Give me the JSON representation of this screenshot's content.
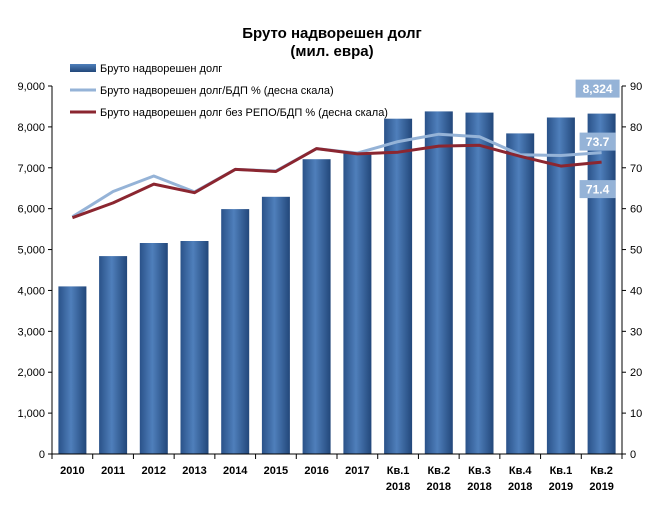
{
  "chart_data": {
    "type": "bar",
    "title": "Бруто надворешен долг",
    "subtitle": "(мил. евра)",
    "categories": [
      [
        "2010"
      ],
      [
        "2011"
      ],
      [
        "2012"
      ],
      [
        "2013"
      ],
      [
        "2014"
      ],
      [
        "2015"
      ],
      [
        "2016"
      ],
      [
        "2017"
      ],
      [
        "Кв.1",
        "2018"
      ],
      [
        "Кв.2",
        "2018"
      ],
      [
        "Кв.3",
        "2018"
      ],
      [
        "Кв.4",
        "2018"
      ],
      [
        "Кв.1",
        "2019"
      ],
      [
        "Кв.2",
        "2019"
      ]
    ],
    "y_left": {
      "min": 0,
      "max": 9000,
      "step": 1000,
      "tick_labels": [
        "0",
        "1,000",
        "2,000",
        "3,000",
        "4,000",
        "5,000",
        "6,000",
        "7,000",
        "8,000",
        "9,000"
      ]
    },
    "y_right": {
      "min": 0,
      "max": 90,
      "step": 10,
      "tick_labels": [
        "0",
        "10",
        "20",
        "30",
        "40",
        "50",
        "60",
        "70",
        "80",
        "90"
      ]
    },
    "grid": false,
    "legend_position": "top-left",
    "series": [
      {
        "name": "Бруто надворешен долг",
        "kind": "bar",
        "axis": "left",
        "color": "#2f5e96",
        "values": [
          4100,
          4840,
          5160,
          5210,
          5990,
          6290,
          7210,
          7360,
          8200,
          8380,
          8350,
          7840,
          8230,
          8324
        ]
      },
      {
        "name": "Бруто надворешен долг/БДП % (десна скала)",
        "kind": "line",
        "axis": "right",
        "color": "#95b3d7",
        "values": [
          58.0,
          64.2,
          68.0,
          64.1,
          69.6,
          69.2,
          74.7,
          73.6,
          76.4,
          78.2,
          77.6,
          73.2,
          73.0,
          73.7
        ]
      },
      {
        "name": "Бруто надворешен долг без РЕПО/БДП % (десна скала)",
        "kind": "line",
        "axis": "right",
        "color": "#8b2630",
        "values": [
          57.8,
          61.4,
          66.0,
          63.9,
          69.6,
          69.1,
          74.7,
          73.4,
          73.8,
          75.3,
          75.5,
          72.8,
          70.4,
          71.4
        ]
      }
    ],
    "annotations": [
      {
        "text": "8,324",
        "series": 0,
        "point": 13
      },
      {
        "text": "73.7",
        "series": 1,
        "point": 13
      },
      {
        "text": "71.4",
        "series": 2,
        "point": 13
      }
    ]
  },
  "colors": {
    "bar_fill": "#2f5e96",
    "bar_highlight": "#4a7ab5",
    "axis": "#000000",
    "callout_bg": "#95b3d7"
  }
}
